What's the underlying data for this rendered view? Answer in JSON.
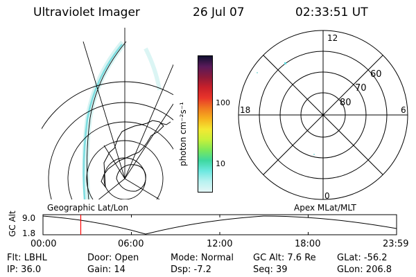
{
  "header": {
    "instrument": "Ultraviolet Imager",
    "date": "26 Jul 07",
    "time": "02:33:51 UT"
  },
  "colorbar": {
    "label": "photon cm⁻²s⁻¹",
    "ticks": [
      "100",
      "10"
    ],
    "colors": [
      "#101030",
      "#5a1a5a",
      "#8c1a3a",
      "#c8202a",
      "#e8342a",
      "#f07a20",
      "#f6b21e",
      "#f4e832",
      "#c8f03a",
      "#7ce85a",
      "#3ed8a0",
      "#6ce8e0",
      "#b8f2f0",
      "#e4f6f6"
    ]
  },
  "geo_map": {
    "label": "Geographic Lat/Lon"
  },
  "polar_map": {
    "label": "Apex MLat/MLT",
    "mlt_labels": {
      "top": "12",
      "bottom": "0",
      "left": "18",
      "right": "6"
    },
    "lat_labels": [
      "60",
      "70",
      "80"
    ]
  },
  "altitude_plot": {
    "ylabel": "GC Alt",
    "yticks": [
      "9.0",
      "1.8"
    ],
    "xticks": [
      "00:00",
      "06:00",
      "12:00",
      "18:00",
      "23:59"
    ],
    "current_time_marker_hours": 2.564
  },
  "status": {
    "filter": "Flt: LBHL",
    "door": "Door: Open",
    "mode": "Mode: Normal",
    "gc_alt": "GC Alt: 7.6 Re",
    "glat": "GLat: -56.2",
    "ip": "IP: 36.0",
    "gain": "Gain: 14",
    "dsp": "Dsp:    -7.2",
    "seq": "Seq: 39",
    "glon": "GLon: 206.8"
  }
}
